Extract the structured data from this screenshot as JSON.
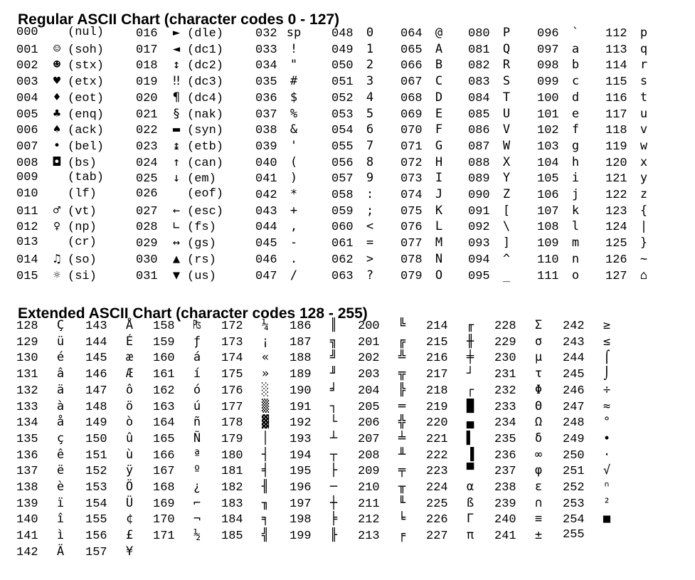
{
  "regular": {
    "title": "Regular ASCII Chart (character codes 0 - 127)",
    "columns": [
      [
        [
          "000",
          "",
          "(nul)"
        ],
        [
          "001",
          "☺",
          "(soh)"
        ],
        [
          "002",
          "☻",
          "(stx)"
        ],
        [
          "003",
          "♥",
          "(etx)"
        ],
        [
          "004",
          "♦",
          "(eot)"
        ],
        [
          "005",
          "♣",
          "(enq)"
        ],
        [
          "006",
          "♠",
          "(ack)"
        ],
        [
          "007",
          "•",
          "(bel)"
        ],
        [
          "008",
          "◘",
          "(bs)"
        ],
        [
          "009",
          "",
          "(tab)"
        ],
        [
          "010",
          "",
          "(lf)"
        ],
        [
          "011",
          "♂",
          "(vt)"
        ],
        [
          "012",
          "♀",
          "(np)"
        ],
        [
          "013",
          "",
          "(cr)"
        ],
        [
          "014",
          "♫",
          "(so)"
        ],
        [
          "015",
          "☼",
          "(si)"
        ]
      ],
      [
        [
          "016",
          "►",
          "(dle)"
        ],
        [
          "017",
          "◄",
          "(dc1)"
        ],
        [
          "018",
          "↕",
          "(dc2)"
        ],
        [
          "019",
          "‼",
          "(dc3)"
        ],
        [
          "020",
          "¶",
          "(dc4)"
        ],
        [
          "021",
          "§",
          "(nak)"
        ],
        [
          "022",
          "▬",
          "(syn)"
        ],
        [
          "023",
          "↨",
          "(etb)"
        ],
        [
          "024",
          "↑",
          "(can)"
        ],
        [
          "025",
          "↓",
          "(em)"
        ],
        [
          "026",
          "",
          "(eof)"
        ],
        [
          "027",
          "←",
          "(esc)"
        ],
        [
          "028",
          "∟",
          "(fs)"
        ],
        [
          "029",
          "↔",
          "(gs)"
        ],
        [
          "030",
          "▲",
          "(rs)"
        ],
        [
          "031",
          "▼",
          "(us)"
        ]
      ],
      [
        [
          "032",
          "sp"
        ],
        [
          "033",
          "!"
        ],
        [
          "034",
          "\""
        ],
        [
          "035",
          "#"
        ],
        [
          "036",
          "$"
        ],
        [
          "037",
          "%"
        ],
        [
          "038",
          "&"
        ],
        [
          "039",
          "'"
        ],
        [
          "040",
          "("
        ],
        [
          "041",
          ")"
        ],
        [
          "042",
          "*"
        ],
        [
          "043",
          "+"
        ],
        [
          "044",
          ","
        ],
        [
          "045",
          "-"
        ],
        [
          "046",
          "."
        ],
        [
          "047",
          "/"
        ]
      ],
      [
        [
          "048",
          "0"
        ],
        [
          "049",
          "1"
        ],
        [
          "050",
          "2"
        ],
        [
          "051",
          "3"
        ],
        [
          "052",
          "4"
        ],
        [
          "053",
          "5"
        ],
        [
          "054",
          "6"
        ],
        [
          "055",
          "7"
        ],
        [
          "056",
          "8"
        ],
        [
          "057",
          "9"
        ],
        [
          "058",
          ":"
        ],
        [
          "059",
          ";"
        ],
        [
          "060",
          "<"
        ],
        [
          "061",
          "="
        ],
        [
          "062",
          ">"
        ],
        [
          "063",
          "?"
        ]
      ],
      [
        [
          "064",
          "@"
        ],
        [
          "065",
          "A"
        ],
        [
          "066",
          "B"
        ],
        [
          "067",
          "C"
        ],
        [
          "068",
          "D"
        ],
        [
          "069",
          "E"
        ],
        [
          "070",
          "F"
        ],
        [
          "071",
          "G"
        ],
        [
          "072",
          "H"
        ],
        [
          "073",
          "I"
        ],
        [
          "074",
          "J"
        ],
        [
          "075",
          "K"
        ],
        [
          "076",
          "L"
        ],
        [
          "077",
          "M"
        ],
        [
          "078",
          "N"
        ],
        [
          "079",
          "O"
        ]
      ],
      [
        [
          "080",
          "P"
        ],
        [
          "081",
          "Q"
        ],
        [
          "082",
          "R"
        ],
        [
          "083",
          "S"
        ],
        [
          "084",
          "T"
        ],
        [
          "085",
          "U"
        ],
        [
          "086",
          "V"
        ],
        [
          "087",
          "W"
        ],
        [
          "088",
          "X"
        ],
        [
          "089",
          "Y"
        ],
        [
          "090",
          "Z"
        ],
        [
          "091",
          "["
        ],
        [
          "092",
          "\\"
        ],
        [
          "093",
          "]"
        ],
        [
          "094",
          "^"
        ],
        [
          "095",
          "_"
        ]
      ],
      [
        [
          "096",
          "`"
        ],
        [
          "097",
          "a"
        ],
        [
          "098",
          "b"
        ],
        [
          "099",
          "c"
        ],
        [
          "100",
          "d"
        ],
        [
          "101",
          "e"
        ],
        [
          "102",
          "f"
        ],
        [
          "103",
          "g"
        ],
        [
          "104",
          "h"
        ],
        [
          "105",
          "i"
        ],
        [
          "106",
          "j"
        ],
        [
          "107",
          "k"
        ],
        [
          "108",
          "l"
        ],
        [
          "109",
          "m"
        ],
        [
          "110",
          "n"
        ],
        [
          "111",
          "o"
        ]
      ],
      [
        [
          "112",
          "p"
        ],
        [
          "113",
          "q"
        ],
        [
          "114",
          "r"
        ],
        [
          "115",
          "s"
        ],
        [
          "116",
          "t"
        ],
        [
          "117",
          "u"
        ],
        [
          "118",
          "v"
        ],
        [
          "119",
          "w"
        ],
        [
          "120",
          "x"
        ],
        [
          "121",
          "y"
        ],
        [
          "122",
          "z"
        ],
        [
          "123",
          "{"
        ],
        [
          "124",
          "|"
        ],
        [
          "125",
          "}"
        ],
        [
          "126",
          "~"
        ],
        [
          "127",
          "⌂"
        ]
      ]
    ]
  },
  "extended": {
    "title": "Extended ASCII Chart (character codes 128 - 255)",
    "columns": [
      [
        [
          "128",
          "Ç"
        ],
        [
          "129",
          "ü"
        ],
        [
          "130",
          "é"
        ],
        [
          "131",
          "â"
        ],
        [
          "132",
          "ä"
        ],
        [
          "133",
          "à"
        ],
        [
          "134",
          "å"
        ],
        [
          "135",
          "ç"
        ],
        [
          "136",
          "ê"
        ],
        [
          "137",
          "ë"
        ],
        [
          "138",
          "è"
        ],
        [
          "139",
          "ï"
        ],
        [
          "140",
          "î"
        ],
        [
          "141",
          "ì"
        ],
        [
          "142",
          "Ä"
        ]
      ],
      [
        [
          "143",
          "Å"
        ],
        [
          "144",
          "É"
        ],
        [
          "145",
          "æ"
        ],
        [
          "146",
          "Æ"
        ],
        [
          "147",
          "ô"
        ],
        [
          "148",
          "ö"
        ],
        [
          "149",
          "ò"
        ],
        [
          "150",
          "û"
        ],
        [
          "151",
          "ù"
        ],
        [
          "152",
          "ÿ"
        ],
        [
          "153",
          "Ö"
        ],
        [
          "154",
          "Ü"
        ],
        [
          "155",
          "¢"
        ],
        [
          "156",
          "£"
        ],
        [
          "157",
          "¥"
        ]
      ],
      [
        [
          "158",
          "₧"
        ],
        [
          "159",
          "ƒ"
        ],
        [
          "160",
          "á"
        ],
        [
          "161",
          "í"
        ],
        [
          "162",
          "ó"
        ],
        [
          "163",
          "ú"
        ],
        [
          "164",
          "ñ"
        ],
        [
          "165",
          "Ñ"
        ],
        [
          "166",
          "ª"
        ],
        [
          "167",
          "º"
        ],
        [
          "168",
          "¿"
        ],
        [
          "169",
          "⌐"
        ],
        [
          "170",
          "¬"
        ],
        [
          "171",
          "½"
        ]
      ],
      [
        [
          "172",
          "¼"
        ],
        [
          "173",
          "¡"
        ],
        [
          "174",
          "«"
        ],
        [
          "175",
          "»"
        ],
        [
          "176",
          "░"
        ],
        [
          "177",
          "▒"
        ],
        [
          "178",
          "▓"
        ],
        [
          "179",
          "│"
        ],
        [
          "180",
          "┤"
        ],
        [
          "181",
          "╡"
        ],
        [
          "182",
          "╢"
        ],
        [
          "183",
          "╖"
        ],
        [
          "184",
          "╕"
        ],
        [
          "185",
          "╣"
        ]
      ],
      [
        [
          "186",
          "║"
        ],
        [
          "187",
          "╗"
        ],
        [
          "188",
          "╝"
        ],
        [
          "189",
          "╜"
        ],
        [
          "190",
          "╛"
        ],
        [
          "191",
          "┐"
        ],
        [
          "192",
          "└"
        ],
        [
          "193",
          "┴"
        ],
        [
          "194",
          "┬"
        ],
        [
          "195",
          "├"
        ],
        [
          "196",
          "─"
        ],
        [
          "197",
          "┼"
        ],
        [
          "198",
          "╞"
        ],
        [
          "199",
          "╟"
        ]
      ],
      [
        [
          "200",
          "╚"
        ],
        [
          "201",
          "╔"
        ],
        [
          "202",
          "╩"
        ],
        [
          "203",
          "╦"
        ],
        [
          "204",
          "╠"
        ],
        [
          "205",
          "═"
        ],
        [
          "206",
          "╬"
        ],
        [
          "207",
          "╧"
        ],
        [
          "208",
          "╨"
        ],
        [
          "209",
          "╤"
        ],
        [
          "210",
          "╥"
        ],
        [
          "211",
          "╙"
        ],
        [
          "212",
          "╘"
        ],
        [
          "213",
          "╒"
        ]
      ],
      [
        [
          "214",
          "╓"
        ],
        [
          "215",
          "╫"
        ],
        [
          "216",
          "╪"
        ],
        [
          "217",
          "┘"
        ],
        [
          "218",
          "┌"
        ],
        [
          "219",
          "█"
        ],
        [
          "220",
          "▄"
        ],
        [
          "221",
          "▌"
        ],
        [
          "222",
          "▐"
        ],
        [
          "223",
          "▀"
        ]
      ],
      [
        [
          "228",
          "Σ"
        ],
        [
          "229",
          "σ"
        ],
        [
          "230",
          "µ"
        ],
        [
          "231",
          "τ"
        ],
        [
          "232",
          "Φ"
        ],
        [
          "233",
          "Θ"
        ],
        [
          "234",
          "Ω"
        ],
        [
          "235",
          "δ"
        ],
        [
          "236",
          "∞"
        ],
        [
          "237",
          "φ"
        ],
        [
          "238",
          "ε"
        ],
        [
          "239",
          "∩"
        ],
        [
          "240",
          "≡"
        ],
        [
          "241",
          "±"
        ]
      ],
      [
        [
          "242",
          "≥"
        ],
        [
          "243",
          "≤"
        ],
        [
          "244",
          "⌠"
        ],
        [
          "245",
          "⌡"
        ],
        [
          "246",
          "÷"
        ],
        [
          "247",
          "≈"
        ],
        [
          "248",
          "°"
        ],
        [
          "249",
          "∙"
        ],
        [
          "250",
          "·"
        ],
        [
          "251",
          "√"
        ],
        [
          "252",
          "ⁿ"
        ],
        [
          "253",
          "²"
        ],
        [
          "254",
          "■"
        ],
        [
          "255",
          ""
        ]
      ]
    ],
    "extra_cells": [
      [
        "224",
        "α"
      ],
      [
        "225",
        "ß"
      ],
      [
        "226",
        "Γ"
      ],
      [
        "227",
        "π"
      ]
    ]
  }
}
